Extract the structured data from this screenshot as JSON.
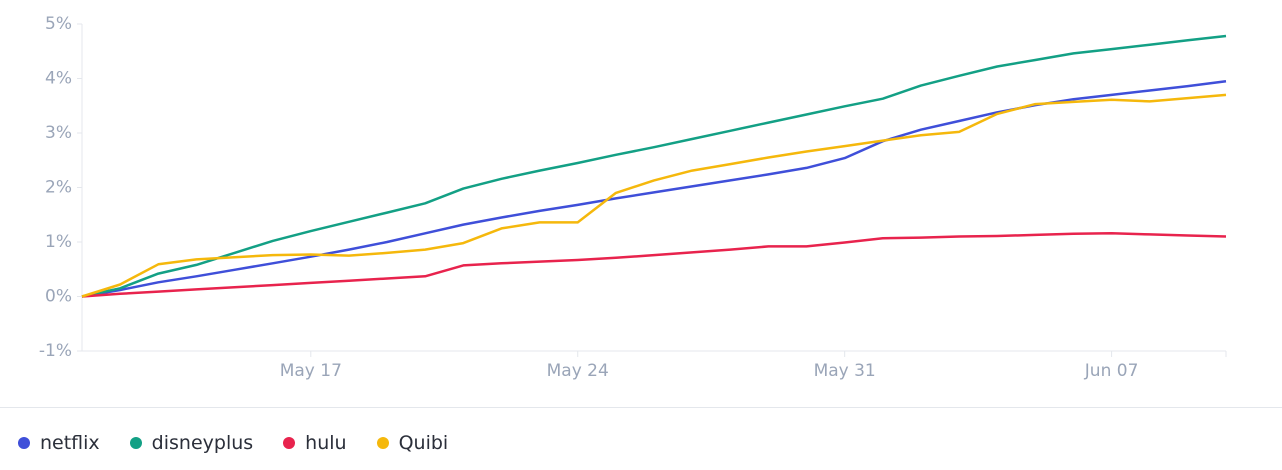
{
  "chart_data": {
    "type": "line",
    "categories": [
      "May 11",
      "May 12",
      "May 13",
      "May 14",
      "May 15",
      "May 16",
      "May 17",
      "May 18",
      "May 19",
      "May 20",
      "May 21",
      "May 22",
      "May 23",
      "May 24",
      "May 25",
      "May 26",
      "May 27",
      "May 28",
      "May 29",
      "May 30",
      "May 31",
      "Jun 01",
      "Jun 02",
      "Jun 03",
      "Jun 04",
      "Jun 05",
      "Jun 06",
      "Jun 07",
      "Jun 08",
      "Jun 09",
      "Jun 10"
    ],
    "xticks": [
      "May 17",
      "May 24",
      "May 31",
      "Jun 07"
    ],
    "ylim": [
      -1,
      5
    ],
    "yticks": [
      {
        "value": -1,
        "label": "-1%"
      },
      {
        "value": 0,
        "label": "0%"
      },
      {
        "value": 1,
        "label": "1%"
      },
      {
        "value": 2,
        "label": "2%"
      },
      {
        "value": 3,
        "label": "3%"
      },
      {
        "value": 4,
        "label": "4%"
      },
      {
        "value": 5,
        "label": "5%"
      }
    ],
    "grid": false,
    "series": [
      {
        "name": "netflix",
        "color": "#3f4fd9",
        "values": [
          0,
          0.12,
          0.26,
          0.37,
          0.49,
          0.61,
          0.73,
          0.86,
          1.0,
          1.16,
          1.32,
          1.45,
          1.57,
          1.68,
          1.8,
          1.91,
          2.02,
          2.13,
          2.24,
          2.36,
          2.54,
          2.85,
          3.06,
          3.22,
          3.38,
          3.51,
          3.62,
          3.7,
          3.78,
          3.86,
          3.95
        ]
      },
      {
        "name": "disneyplus",
        "color": "#13a085",
        "values": [
          0,
          0.15,
          0.42,
          0.58,
          0.8,
          1.02,
          1.2,
          1.37,
          1.54,
          1.71,
          1.98,
          2.16,
          2.31,
          2.45,
          2.6,
          2.74,
          2.89,
          3.04,
          3.19,
          3.34,
          3.49,
          3.63,
          3.87,
          4.05,
          4.22,
          4.34,
          4.46,
          4.54,
          4.62,
          4.7,
          4.78
        ]
      },
      {
        "name": "hulu",
        "color": "#e8234d",
        "values": [
          0,
          0.05,
          0.09,
          0.13,
          0.17,
          0.21,
          0.25,
          0.29,
          0.33,
          0.37,
          0.57,
          0.61,
          0.64,
          0.67,
          0.71,
          0.76,
          0.81,
          0.86,
          0.92,
          0.92,
          0.99,
          1.07,
          1.08,
          1.1,
          1.11,
          1.13,
          1.15,
          1.16,
          1.14,
          1.12,
          1.1
        ]
      },
      {
        "name": "Quibi",
        "color": "#f5b80c",
        "values": [
          0,
          0.22,
          0.59,
          0.68,
          0.72,
          0.76,
          0.77,
          0.75,
          0.8,
          0.86,
          0.98,
          1.25,
          1.36,
          1.36,
          1.9,
          2.13,
          2.31,
          2.43,
          2.55,
          2.66,
          2.76,
          2.86,
          2.96,
          3.02,
          3.35,
          3.53,
          3.57,
          3.61,
          3.58,
          3.64,
          3.7
        ]
      }
    ]
  }
}
